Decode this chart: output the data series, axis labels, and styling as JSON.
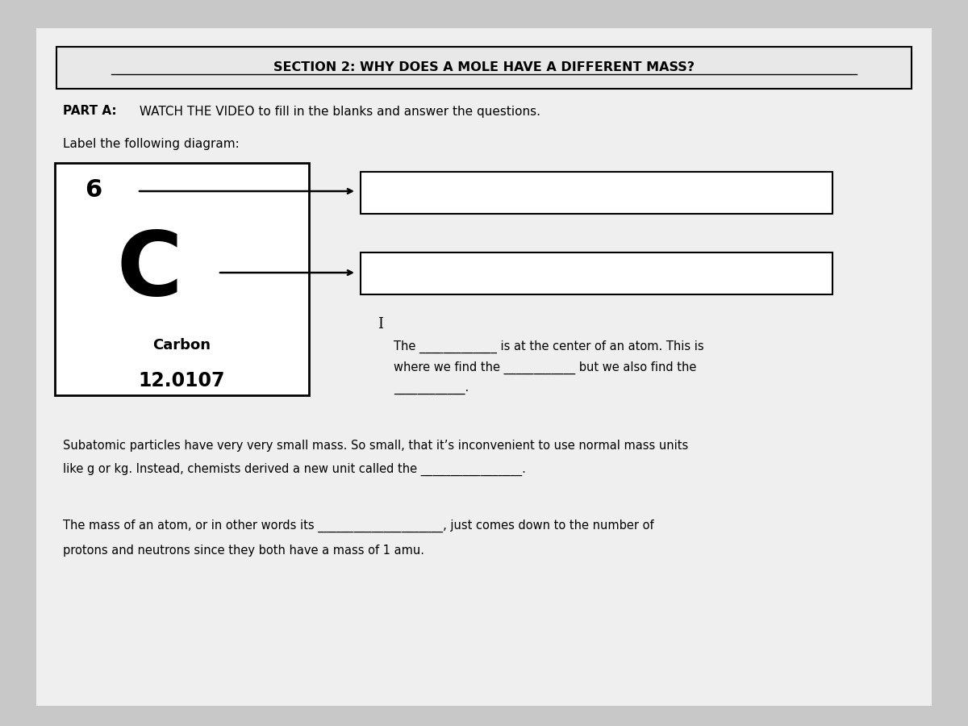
{
  "bg_color": "#c8c8c8",
  "page_bg": "#f0f0f0",
  "title": "SECTION 2: WHY DOES A MOLE HAVE A DIFFERENT MASS?",
  "part_a_bold": "PART A:",
  "part_a_rest": " WATCH THE VIDEO to fill in the blanks and answer the questions.",
  "label_diagram": "Label the following diagram:",
  "element_number": "6",
  "element_symbol": "C",
  "element_name": "Carbon",
  "element_mass": "12.0107",
  "sentence1": "The _____________ is at the center of an atom. This is",
  "sentence2": "where we find the ____________ but we also find the",
  "sentence3": "____________.",
  "para1_line1": "Subatomic particles have very very small mass. So small, that it’s inconvenient to use normal mass units",
  "para1_line2": "like g or kg. Instead, chemists derived a new unit called the _________________.",
  "para2_line1": "The mass of an atom, or in other words its _____________________, just comes down to the number of",
  "para2_line2": "protons and neutrons since they both have a mass of 1 amu."
}
